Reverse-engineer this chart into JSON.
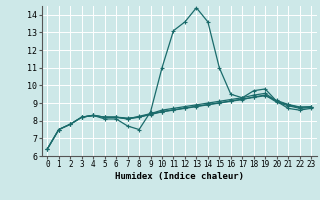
{
  "xlabel": "Humidex (Indice chaleur)",
  "ylabel": "",
  "xlim": [
    -0.5,
    23.5
  ],
  "ylim": [
    6,
    14.5
  ],
  "yticks": [
    6,
    7,
    8,
    9,
    10,
    11,
    12,
    13,
    14
  ],
  "xticks": [
    0,
    1,
    2,
    3,
    4,
    5,
    6,
    7,
    8,
    9,
    10,
    11,
    12,
    13,
    14,
    15,
    16,
    17,
    18,
    19,
    20,
    21,
    22,
    23
  ],
  "bg_color": "#cde8e8",
  "grid_color": "#ffffff",
  "line_color": "#1a6b6b",
  "line1_x": [
    0,
    1,
    2,
    3,
    4,
    5,
    6,
    7,
    8,
    9,
    10,
    11,
    12,
    13,
    14,
    15,
    16,
    17,
    18,
    19,
    20,
    21,
    22,
    23
  ],
  "line1_y": [
    6.4,
    7.5,
    7.8,
    8.2,
    8.3,
    8.1,
    8.1,
    7.7,
    7.5,
    8.5,
    11.0,
    13.1,
    13.6,
    14.4,
    13.6,
    11.0,
    9.5,
    9.3,
    9.7,
    9.8,
    9.1,
    8.7,
    8.6,
    8.7
  ],
  "line2_x": [
    0,
    1,
    2,
    3,
    4,
    5,
    6,
    7,
    8,
    9,
    10,
    11,
    12,
    13,
    14,
    15,
    16,
    17,
    18,
    19,
    20,
    21,
    22,
    23
  ],
  "line2_y": [
    6.4,
    7.5,
    7.8,
    8.2,
    8.3,
    8.2,
    8.2,
    8.15,
    8.2,
    8.35,
    8.5,
    8.6,
    8.7,
    8.8,
    8.9,
    9.0,
    9.1,
    9.2,
    9.35,
    9.45,
    9.05,
    8.85,
    8.7,
    8.75
  ],
  "line3_x": [
    0,
    1,
    2,
    3,
    4,
    5,
    6,
    7,
    8,
    9,
    10,
    11,
    12,
    13,
    14,
    15,
    16,
    17,
    18,
    19,
    20,
    21,
    22,
    23
  ],
  "line3_y": [
    6.4,
    7.5,
    7.8,
    8.2,
    8.3,
    8.2,
    8.2,
    8.1,
    8.25,
    8.4,
    8.6,
    8.7,
    8.8,
    8.9,
    9.0,
    9.1,
    9.2,
    9.3,
    9.45,
    9.55,
    9.1,
    8.9,
    8.75,
    8.8
  ],
  "line4_x": [
    3,
    4,
    5,
    6,
    7,
    8,
    9,
    10,
    11,
    12,
    13,
    14,
    15,
    16,
    17,
    18,
    19,
    20,
    21,
    22,
    23
  ],
  "line4_y": [
    8.2,
    8.3,
    8.2,
    8.2,
    8.1,
    8.2,
    8.38,
    8.52,
    8.62,
    8.72,
    8.82,
    8.92,
    9.02,
    9.12,
    9.22,
    9.32,
    9.42,
    9.15,
    8.92,
    8.78,
    8.78
  ]
}
